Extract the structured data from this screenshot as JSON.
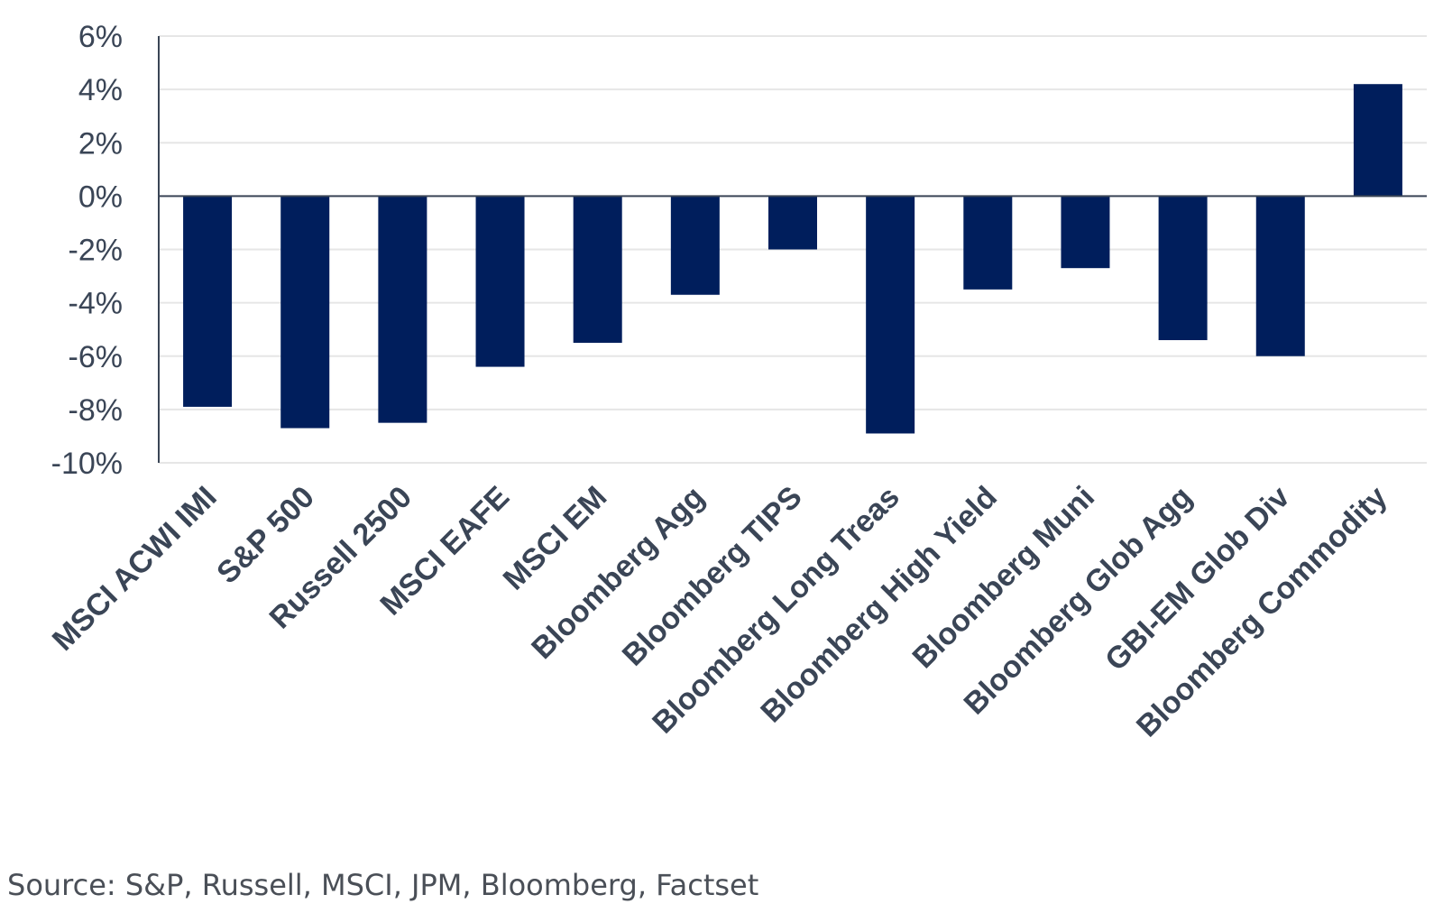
{
  "chart_data": {
    "type": "bar",
    "categories": [
      "MSCI ACWI IMI",
      "S&P 500",
      "Russell 2500",
      "MSCI EAFE",
      "MSCI EM",
      "Bloomberg Agg",
      "Bloomberg TIPS",
      "Bloomberg Long Treas",
      "Bloomberg High Yield",
      "Bloomberg Muni",
      "Bloomberg Glob Agg",
      "GBI-EM Glob Div",
      "Bloomberg Commodity"
    ],
    "values": [
      -7.9,
      -8.7,
      -8.5,
      -6.4,
      -5.5,
      -3.7,
      -2.0,
      -8.9,
      -3.5,
      -2.7,
      -5.4,
      -6.0,
      4.2
    ],
    "yticks": [
      "6%",
      "4%",
      "2%",
      "0%",
      "-2%",
      "-4%",
      "-6%",
      "-8%",
      "-10%"
    ],
    "ylim": [
      -10,
      6
    ],
    "grid": true,
    "bar_color": "#001e5c",
    "title": "",
    "xlabel": "",
    "ylabel": ""
  },
  "source": "Source: S&P, Russell, MSCI, JPM, Bloomberg, Factset"
}
